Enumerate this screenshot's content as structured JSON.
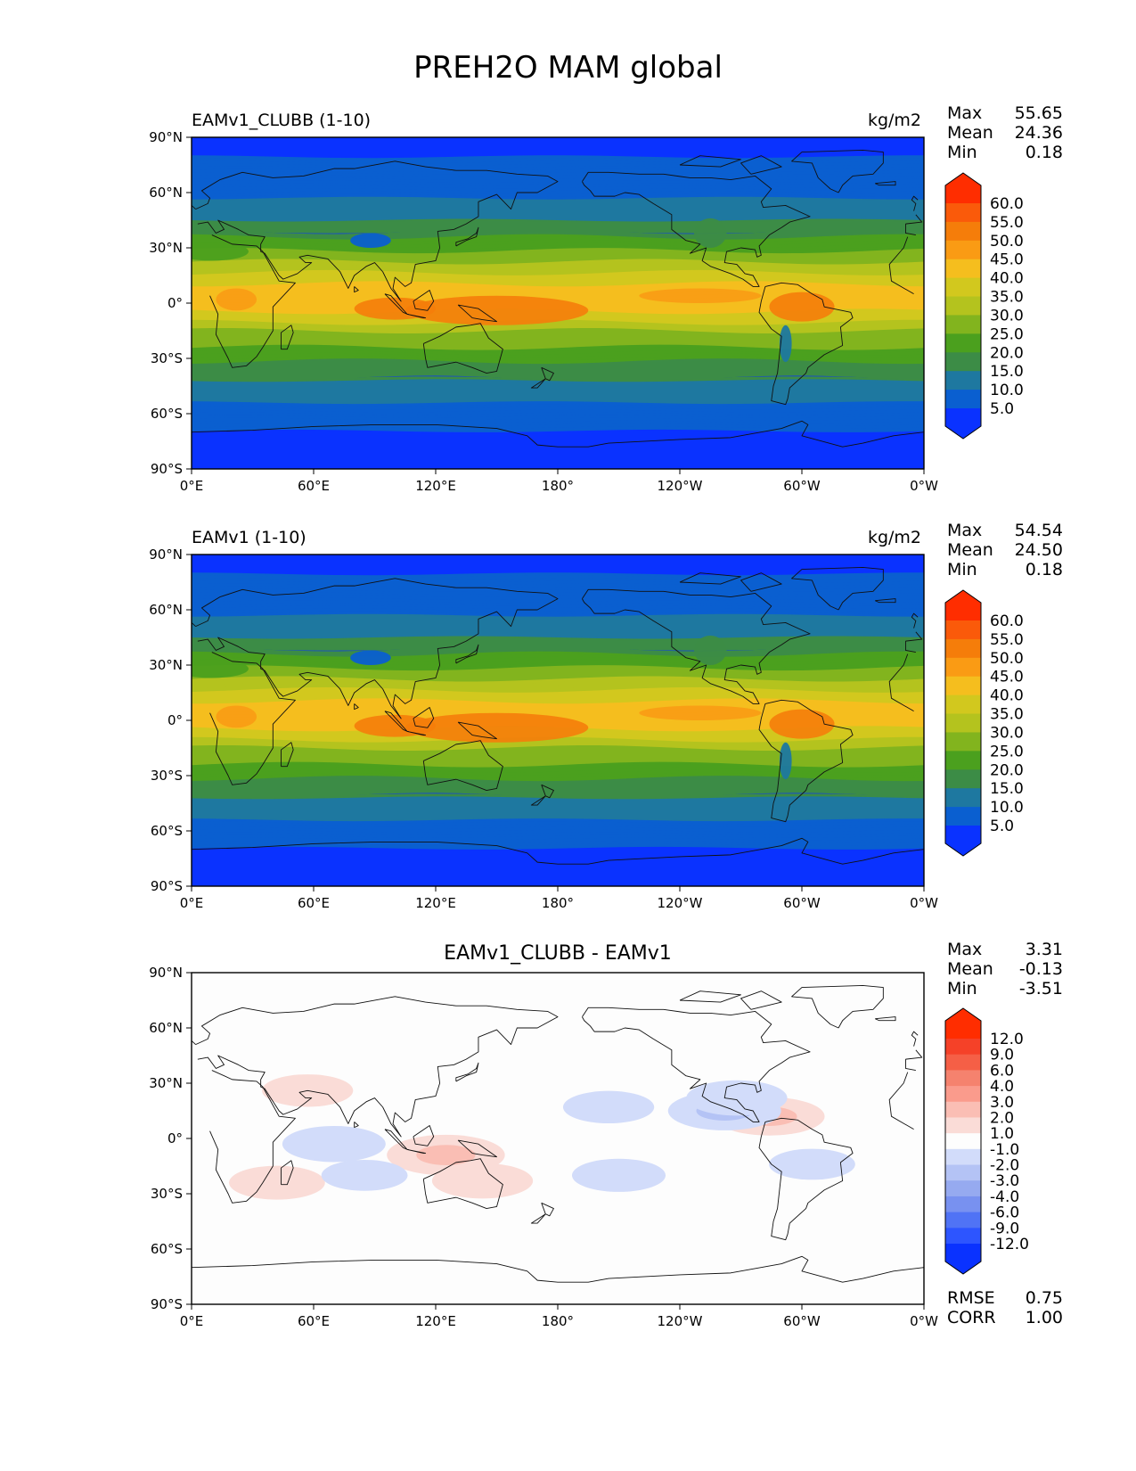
{
  "figure": {
    "title": "PREH2O MAM global"
  },
  "axes": {
    "x_ticks": [
      "0°E",
      "60°E",
      "120°E",
      "180°",
      "120°W",
      "60°W",
      "0°W"
    ],
    "y_ticks": [
      "90°N",
      "60°N",
      "30°N",
      "0°",
      "30°S",
      "60°S",
      "90°S"
    ]
  },
  "panels": [
    {
      "id": "clubb",
      "title_left": "EAMv1_CLUBB (1-10)",
      "title_center": "",
      "units": "kg/m2",
      "stats": [
        {
          "label": "Max",
          "value": "55.65"
        },
        {
          "label": "Mean",
          "value": "24.36"
        },
        {
          "label": "Min",
          "value": "0.18"
        }
      ],
      "colorbar_ticks": [
        "60.0",
        "55.0",
        "50.0",
        "45.0",
        "40.0",
        "35.0",
        "30.0",
        "25.0",
        "20.0",
        "15.0",
        "10.0",
        "5.0"
      ],
      "extra_stats": []
    },
    {
      "id": "eamv1",
      "title_left": "EAMv1 (1-10)",
      "title_center": "",
      "units": "kg/m2",
      "stats": [
        {
          "label": "Max",
          "value": "54.54"
        },
        {
          "label": "Mean",
          "value": "24.50"
        },
        {
          "label": "Min",
          "value": "0.18"
        }
      ],
      "colorbar_ticks": [
        "60.0",
        "55.0",
        "50.0",
        "45.0",
        "40.0",
        "35.0",
        "30.0",
        "25.0",
        "20.0",
        "15.0",
        "10.0",
        "5.0"
      ],
      "extra_stats": []
    },
    {
      "id": "diff",
      "title_left": "",
      "title_center": "EAMv1_CLUBB - EAMv1",
      "units": "",
      "stats": [
        {
          "label": "Max",
          "value": "3.31"
        },
        {
          "label": "Mean",
          "value": "-0.13"
        },
        {
          "label": "Min",
          "value": "-3.51"
        }
      ],
      "colorbar_ticks": [
        "12.0",
        "9.0",
        "6.0",
        "4.0",
        "3.0",
        "2.0",
        "1.0",
        "-1.0",
        "-2.0",
        "-3.0",
        "-4.0",
        "-6.0",
        "-9.0",
        "-12.0"
      ],
      "extra_stats": [
        {
          "label": "RMSE",
          "value": "0.75"
        },
        {
          "label": "CORR",
          "value": "1.00"
        }
      ]
    }
  ],
  "chart_data": [
    {
      "type": "heatmap",
      "title": "EAMv1_CLUBB (1-10)",
      "units": "kg/m2",
      "x_range": [
        0,
        360
      ],
      "y_range": [
        -90,
        90
      ],
      "levels": [
        5,
        10,
        15,
        20,
        25,
        30,
        35,
        40,
        45,
        50,
        55,
        60
      ],
      "stats": {
        "max": 55.65,
        "mean": 24.36,
        "min": 0.18
      },
      "zonal_profile_lat": [
        90,
        75,
        60,
        45,
        30,
        15,
        5,
        0,
        -5,
        -15,
        -30,
        -45,
        -60,
        -75,
        -90
      ],
      "zonal_profile_value": [
        3,
        6,
        9,
        15,
        24,
        36,
        44,
        45,
        40,
        30,
        21,
        13,
        8,
        3,
        1
      ],
      "colors": [
        "#0a32ff",
        "#0a5fd0",
        "#1e78a0",
        "#3c8c46",
        "#4ba01e",
        "#82b41e",
        "#b4c31e",
        "#d2c81e",
        "#f5be1e",
        "#fa9b14",
        "#f57d0a",
        "#fa5a0a",
        "#ff2d00"
      ]
    },
    {
      "type": "heatmap",
      "title": "EAMv1 (1-10)",
      "units": "kg/m2",
      "x_range": [
        0,
        360
      ],
      "y_range": [
        -90,
        90
      ],
      "levels": [
        5,
        10,
        15,
        20,
        25,
        30,
        35,
        40,
        45,
        50,
        55,
        60
      ],
      "stats": {
        "max": 54.54,
        "mean": 24.5,
        "min": 0.18
      },
      "zonal_profile_lat": [
        90,
        75,
        60,
        45,
        30,
        15,
        5,
        0,
        -5,
        -15,
        -30,
        -45,
        -60,
        -75,
        -90
      ],
      "zonal_profile_value": [
        3,
        6,
        9,
        15,
        24,
        36,
        44,
        45,
        40,
        30,
        21,
        13,
        8,
        3,
        1
      ],
      "colors": [
        "#0a32ff",
        "#0a5fd0",
        "#1e78a0",
        "#3c8c46",
        "#4ba01e",
        "#82b41e",
        "#b4c31e",
        "#d2c81e",
        "#f5be1e",
        "#fa9b14",
        "#f57d0a",
        "#fa5a0a",
        "#ff2d00"
      ]
    },
    {
      "type": "heatmap",
      "title": "EAMv1_CLUBB - EAMv1",
      "units": "",
      "x_range": [
        0,
        360
      ],
      "y_range": [
        -90,
        90
      ],
      "levels": [
        -12,
        -9,
        -6,
        -4,
        -3,
        -2,
        -1,
        1,
        2,
        3,
        4,
        6,
        9,
        12
      ],
      "stats": {
        "max": 3.31,
        "mean": -0.13,
        "min": -3.51,
        "rmse": 0.75,
        "corr": 1.0
      },
      "colors": [
        "#0a32ff",
        "#2d55ff",
        "#5073f5",
        "#7891f0",
        "#96aaf0",
        "#b4c3f5",
        "#d2dcfa",
        "#fdfdfd",
        "#fadcd7",
        "#fabeb4",
        "#fa9b8c",
        "#f5826e",
        "#f55f46",
        "#f54128",
        "#ff2d00"
      ],
      "anomalies": [
        {
          "lon": 125,
          "lat": -9,
          "value": 2.5
        },
        {
          "lon": 143,
          "lat": -23,
          "value": 1.8
        },
        {
          "lon": 284,
          "lat": 12,
          "value": 2.2
        },
        {
          "lon": 42,
          "lat": -24,
          "value": 1.6
        },
        {
          "lon": 57,
          "lat": 26,
          "value": 1.4
        },
        {
          "lon": 262,
          "lat": 15,
          "value": -2.3
        },
        {
          "lon": 268,
          "lat": 22,
          "value": -1.8
        },
        {
          "lon": 70,
          "lat": -3,
          "value": -1.9
        },
        {
          "lon": 210,
          "lat": -20,
          "value": -1.5
        },
        {
          "lon": 205,
          "lat": 17,
          "value": -1.4
        },
        {
          "lon": 85,
          "lat": -20,
          "value": -1.2
        },
        {
          "lon": 305,
          "lat": -14,
          "value": -1.2
        }
      ]
    }
  ]
}
